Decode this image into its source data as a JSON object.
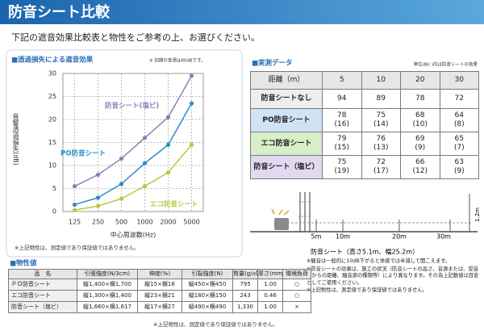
{
  "header": {
    "title": "防音シート比較",
    "subtitle": "下記の遮音効果比較表と物性をご参考の上、お選びください。"
  },
  "chart_data": {
    "type": "line",
    "title": "■透過損失による遮音効果",
    "note": "※ 初期の音源は80dBです。",
    "y_label": "音響透過損失(dB)",
    "x_label": "中心周波数(Hz)",
    "footnote": "※上記物性は、測定値であり保証値ではありません。",
    "categories": [
      "125",
      "250",
      "500",
      "1000",
      "2000",
      "5000"
    ],
    "ylim": [
      0,
      30
    ],
    "yticks": [
      0,
      5,
      10,
      15,
      20,
      25,
      30
    ],
    "grid": true,
    "series": [
      {
        "name": "防音シート(塩ビ)",
        "color": "#8b7fb5",
        "values": [
          5.5,
          8,
          11.5,
          16,
          20.5,
          29.5
        ]
      },
      {
        "name": "PO防音シート",
        "color": "#2b8cc8",
        "values": [
          1.5,
          3,
          6,
          10.5,
          14.5,
          23.5
        ]
      },
      {
        "name": "エコ防音シート",
        "color": "#b9c73d",
        "values": [
          0.3,
          1.2,
          2.8,
          5.5,
          8.5,
          14.5
        ]
      }
    ]
  },
  "measured": {
    "title": "■実測データ",
    "unit_note": "単位dB( )内は防音シートの効果",
    "header": [
      "距離（m）",
      "5",
      "10",
      "20",
      "30"
    ],
    "rows": [
      {
        "label": "防音シートなし",
        "cells": [
          [
            "94"
          ],
          [
            "89"
          ],
          [
            "78"
          ],
          [
            "72"
          ]
        ]
      },
      {
        "label": "PO防音シート",
        "cells": [
          [
            "78",
            "(16)"
          ],
          [
            "75",
            "(14)"
          ],
          [
            "68",
            "(10)"
          ],
          [
            "64",
            "(8)"
          ]
        ]
      },
      {
        "label": "エコ防音シート",
        "cells": [
          [
            "79",
            "(15)"
          ],
          [
            "76",
            "(13)"
          ],
          [
            "69",
            "(9)"
          ],
          [
            "65",
            "(7)"
          ]
        ]
      },
      {
        "label": "防音シート（塩ビ）",
        "cells": [
          [
            "75",
            "(19)"
          ],
          [
            "72",
            "(17)"
          ],
          [
            "66",
            "(12)"
          ],
          [
            "63",
            "(9)"
          ]
        ]
      }
    ]
  },
  "diagram": {
    "distances": [
      "5m",
      "10m",
      "20m",
      "30m"
    ],
    "height": "1.2m",
    "sheet_label": "防音シート（高さ5.1m、幅25.2m）"
  },
  "notes": [
    "※騒音は一般的に10dB下がると体感では半減して聞こえます。",
    "※防音シートの効果は、施工の状況（防音シートの高さ、音源または、受音点からの距離、騒音源の種類等）により異なります。その為上記数値は目安としてご使用ください。",
    "※上記物性は、測定値であり保証値ではありません。"
  ],
  "properties": {
    "title": "■物性値",
    "header": [
      "品　名",
      "引張強度(N/3cm)",
      "伸度(%)",
      "引裂強度(N)",
      "質量(g/㎡)",
      "厚さ(mm)",
      "環境負荷"
    ],
    "rows": [
      [
        "ＰＯ防音シート",
        "縦1,400×横1,700",
        "縦15×横16",
        "縦450×横450",
        "795",
        "1.00",
        "○"
      ],
      [
        "エコ防音シート",
        "縦1,300×横1,400",
        "縦23×横21",
        "縦180×横150",
        "243",
        "0.46",
        "○"
      ],
      [
        "防音シート（塩ビ）",
        "縦1,660×横1,617",
        "縦17×横27",
        "縦490×横490",
        "1,330",
        "1.00",
        "×"
      ]
    ],
    "footnote": "※上記物性は、測定値であり保証値ではありません。"
  }
}
